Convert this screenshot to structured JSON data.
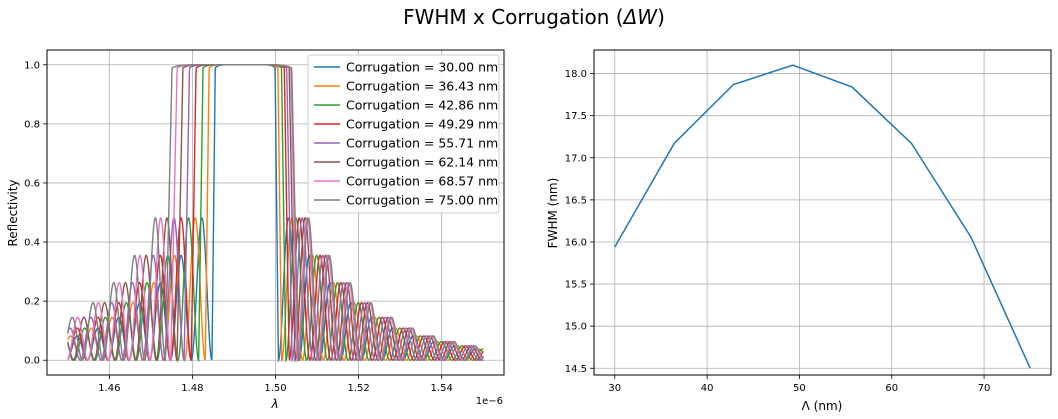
{
  "figure": {
    "title_prefix": "FWHM x Corrugation (",
    "title_symbol": "ΔW",
    "title_suffix": ")"
  },
  "chart_data": [
    {
      "type": "line",
      "xlabel": "λ",
      "ylabel": "Reflectivity",
      "x_scale_label": "1e−6",
      "xlim": [
        1.445,
        1.555
      ],
      "ylim": [
        -0.05,
        1.05
      ],
      "xticks": [
        "1.46",
        "1.48",
        "1.50",
        "1.52",
        "1.54"
      ],
      "xtick_values": [
        1.46,
        1.48,
        1.5,
        1.52,
        1.54
      ],
      "yticks": [
        "0.0",
        "0.2",
        "0.4",
        "0.6",
        "0.8",
        "1.0"
      ],
      "ytick_values": [
        0.0,
        0.2,
        0.4,
        0.6,
        0.8,
        1.0
      ],
      "grid": true,
      "legend_position": "top-right",
      "x_range": [
        1.45,
        1.55
      ],
      "series": [
        {
          "name": "Corrugation = 30.00 nm",
          "color": "#1f77b4",
          "center": 1.4927,
          "half_width": 0.008,
          "period": 0.005
        },
        {
          "name": "Corrugation = 36.43 nm",
          "color": "#ff7f0e",
          "center": 1.4923,
          "half_width": 0.0092,
          "period": 0.005
        },
        {
          "name": "Corrugation = 42.86 nm",
          "color": "#2ca02c",
          "center": 1.492,
          "half_width": 0.0105,
          "period": 0.005
        },
        {
          "name": "Corrugation = 49.29 nm",
          "color": "#d62728",
          "center": 1.4915,
          "half_width": 0.0118,
          "period": 0.005
        },
        {
          "name": "Corrugation = 55.71 nm",
          "color": "#9467bd",
          "center": 1.491,
          "half_width": 0.013,
          "period": 0.005
        },
        {
          "name": "Corrugation = 62.14 nm",
          "color": "#8c564b",
          "center": 1.4905,
          "half_width": 0.0142,
          "period": 0.005
        },
        {
          "name": "Corrugation = 68.57 nm",
          "color": "#e377c2",
          "center": 1.49,
          "half_width": 0.0152,
          "period": 0.005
        },
        {
          "name": "Corrugation = 75.00 nm",
          "color": "#7f7f7f",
          "center": 1.4895,
          "half_width": 0.016,
          "period": 0.005
        }
      ]
    },
    {
      "type": "line",
      "xlabel": "Λ (nm)",
      "ylabel": "FWHM (nm)",
      "xlim": [
        27.75,
        77.25
      ],
      "ylim": [
        14.42,
        18.28
      ],
      "xticks": [
        "30",
        "40",
        "50",
        "60",
        "70"
      ],
      "xtick_values": [
        30,
        40,
        50,
        60,
        70
      ],
      "yticks": [
        "14.5",
        "15.0",
        "15.5",
        "16.0",
        "16.5",
        "17.0",
        "17.5",
        "18.0"
      ],
      "ytick_values": [
        14.5,
        15.0,
        15.5,
        16.0,
        16.5,
        17.0,
        17.5,
        18.0
      ],
      "grid": true,
      "series": [
        {
          "color": "#1f77b4",
          "x": [
            30.0,
            36.43,
            42.86,
            49.29,
            55.71,
            62.14,
            68.57,
            75.0
          ],
          "y": [
            15.94,
            17.17,
            17.87,
            18.1,
            17.84,
            17.17,
            16.06,
            14.5
          ]
        }
      ]
    }
  ]
}
